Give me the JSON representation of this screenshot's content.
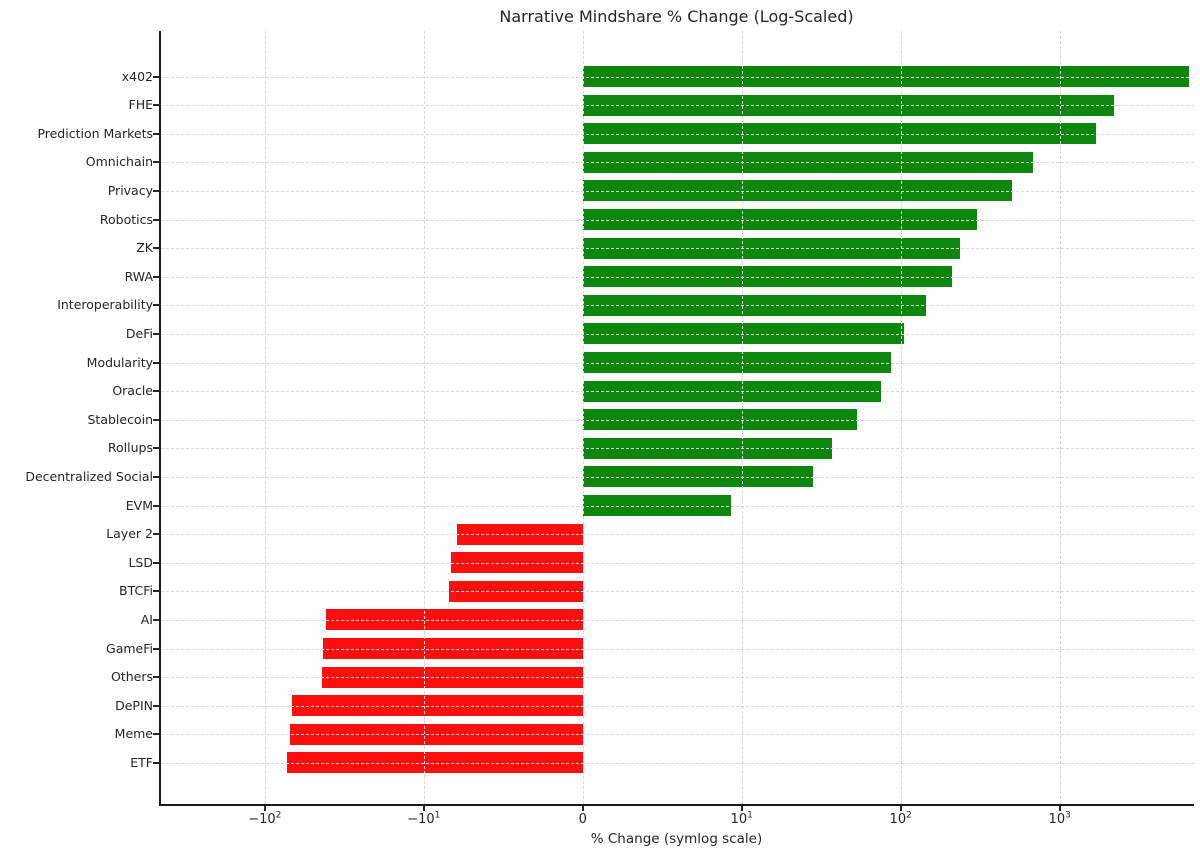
{
  "chart_data": {
    "type": "bar",
    "orientation": "horizontal",
    "title": "Narrative Mindshare % Change (Log-Scaled)",
    "xlabel": "% Change (symlog scale)",
    "x_scale": "symlog",
    "linthresh": 10,
    "xlim": [
      -450,
      7000
    ],
    "grid": "dashed, both axes",
    "legend_position": "none",
    "categories": [
      "x402",
      "FHE",
      "Prediction Markets",
      "Omnichain",
      "Privacy",
      "Robotics",
      "ZK",
      "RWA",
      "Interoperability",
      "DeFi",
      "Modularity",
      "Oracle",
      "Stablecoin",
      "Rollups",
      "Decentralized Social",
      "EVM",
      "Layer 2",
      "LSD",
      "BTCFi",
      "AI",
      "GameFi",
      "Others",
      "DePIN",
      "Meme",
      "ETF"
    ],
    "values": [
      6500,
      2200,
      1700,
      680,
      500,
      300,
      235,
      210,
      145,
      105,
      87,
      75,
      53,
      37,
      28,
      9.3,
      -7.9,
      -8.3,
      -8.4,
      -41,
      -43,
      -44,
      -68,
      -70,
      -73
    ],
    "colors": {
      "positive": "#0d860d",
      "negative": "#fb0f0f",
      "gridline": "#d8d8d8",
      "spine": "#1a1a1a",
      "text": "#262626"
    },
    "x_ticks": [
      {
        "value": -100,
        "base": "−10",
        "exp": "2"
      },
      {
        "value": -10,
        "base": "−10",
        "exp": "1"
      },
      {
        "value": 0,
        "base": "0",
        "exp": ""
      },
      {
        "value": 10,
        "base": "10",
        "exp": "1"
      },
      {
        "value": 100,
        "base": "10",
        "exp": "2"
      },
      {
        "value": 1000,
        "base": "10",
        "exp": "3"
      }
    ]
  }
}
